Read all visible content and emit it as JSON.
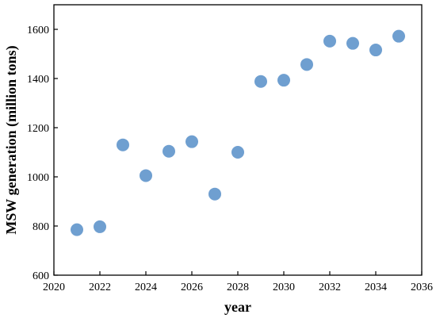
{
  "chart_data": {
    "type": "scatter",
    "xlabel": "year",
    "ylabel": "MSW generation (million tons)",
    "xlim": [
      2020,
      2036
    ],
    "ylim": [
      600,
      1700
    ],
    "xticks": [
      2020,
      2022,
      2024,
      2026,
      2028,
      2030,
      2032,
      2034,
      2036
    ],
    "yticks": [
      600,
      800,
      1000,
      1200,
      1400,
      1600
    ],
    "grid": false,
    "marker_color": "#6f9fd0",
    "series": [
      {
        "x": [
          2021,
          2022,
          2023,
          2024,
          2025,
          2026,
          2027,
          2028,
          2029,
          2030,
          2031,
          2032,
          2033,
          2034,
          2035
        ],
        "y": [
          785,
          797,
          1130,
          1005,
          1104,
          1143,
          930,
          1100,
          1388,
          1393,
          1457,
          1552,
          1543,
          1516,
          1572
        ]
      }
    ]
  }
}
